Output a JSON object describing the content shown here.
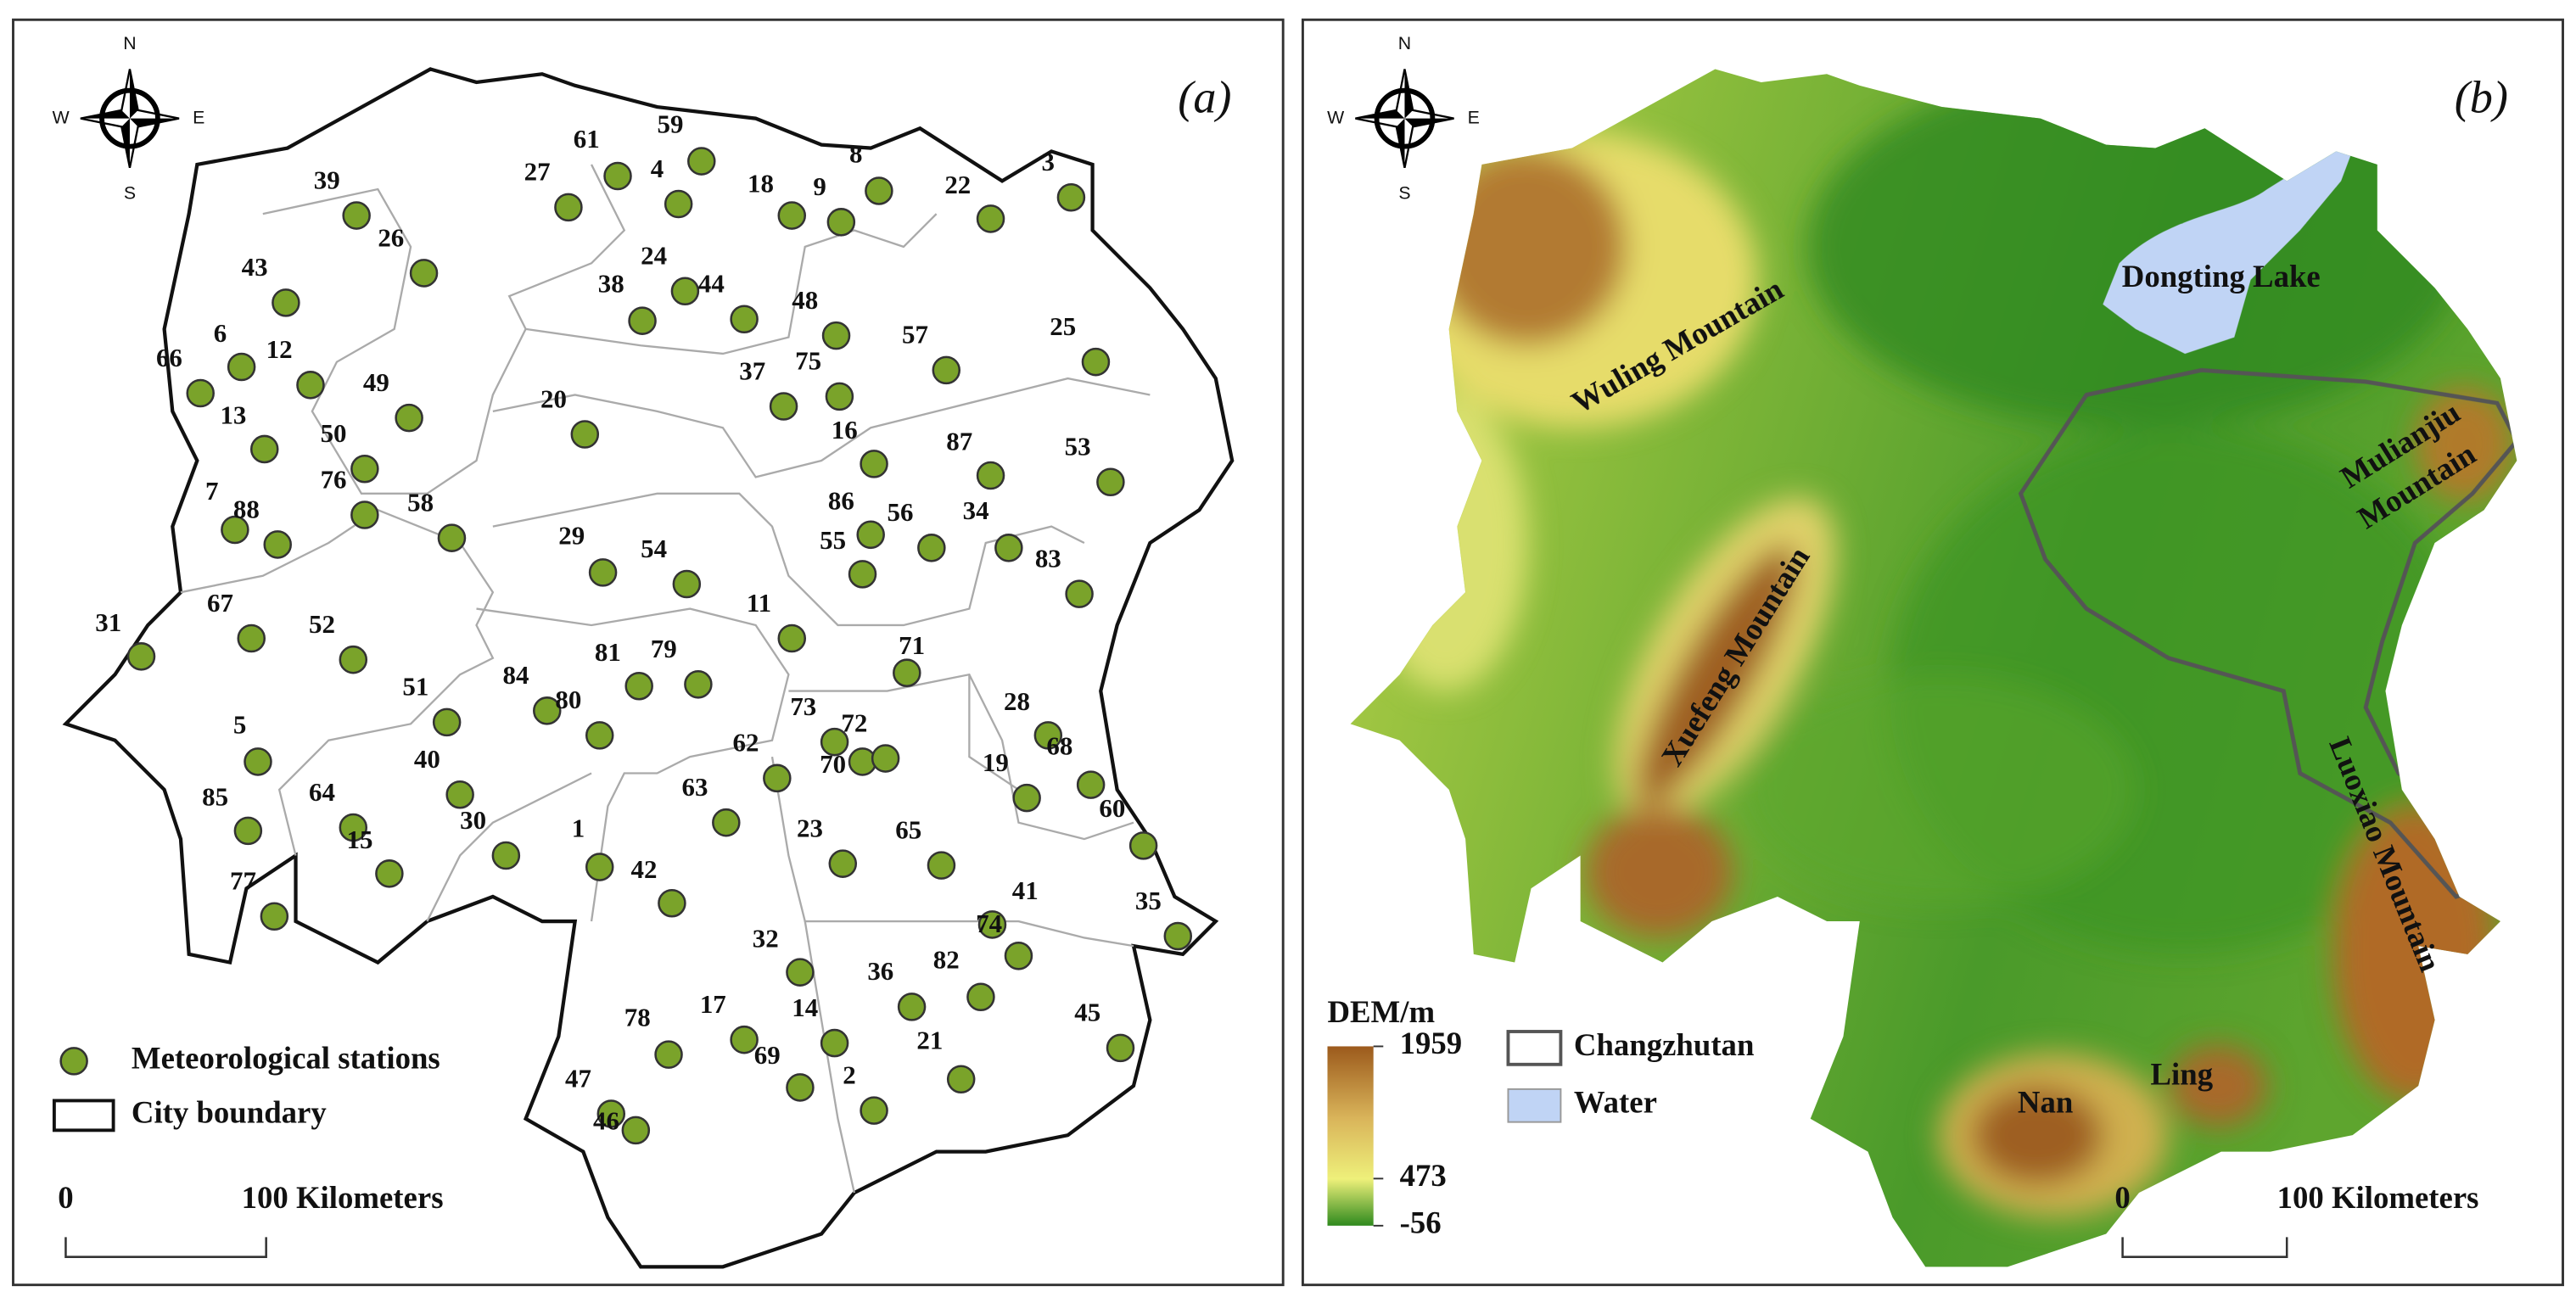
{
  "panel_a": {
    "label": "(a)",
    "compass": {
      "n": "N",
      "s": "S",
      "e": "E",
      "w": "W"
    },
    "stations": [
      "1",
      "2",
      "3",
      "4",
      "5",
      "6",
      "7",
      "8",
      "9",
      "11",
      "12",
      "13",
      "14",
      "15",
      "16",
      "17",
      "18",
      "19",
      "20",
      "21",
      "22",
      "23",
      "24",
      "25",
      "26",
      "27",
      "28",
      "29",
      "30",
      "31",
      "32",
      "34",
      "35",
      "36",
      "37",
      "38",
      "39",
      "40",
      "41",
      "42",
      "43",
      "44",
      "45",
      "46",
      "47",
      "48",
      "49",
      "50",
      "51",
      "52",
      "53",
      "54",
      "55",
      "56",
      "57",
      "58",
      "59",
      "60",
      "61",
      "62",
      "63",
      "64",
      "65",
      "66",
      "67",
      "68",
      "69",
      "70",
      "71",
      "72",
      "73",
      "74",
      "75",
      "76",
      "77",
      "78",
      "79",
      "80",
      "81",
      "82",
      "83",
      "84",
      "85",
      "86",
      "87",
      "88"
    ],
    "legend": {
      "stations": "Meteorological stations",
      "boundary": "City boundary"
    },
    "scale_bar": {
      "start": "0",
      "end": "100 Kilometers"
    }
  },
  "panel_b": {
    "label": "(b)",
    "compass": {
      "n": "N",
      "s": "S",
      "e": "E",
      "w": "W"
    },
    "features": {
      "wuling": "Wuling Mountain",
      "dongting": "Dongting Lake",
      "mulianjiu": [
        "Mulianjiu",
        "Mountain"
      ],
      "xuefeng": "Xuefeng Mountain",
      "luoxiao": "Luoxiao Mountain",
      "nan": "Nan",
      "ling": "Ling"
    },
    "colorbar": {
      "title": "DEM/m",
      "ticks": [
        1959,
        473,
        -56
      ]
    },
    "legend": {
      "changzhutan": "Changzhutan",
      "water": "Water"
    },
    "scale_bar": {
      "start": "0",
      "end": "100 Kilometers"
    }
  }
}
